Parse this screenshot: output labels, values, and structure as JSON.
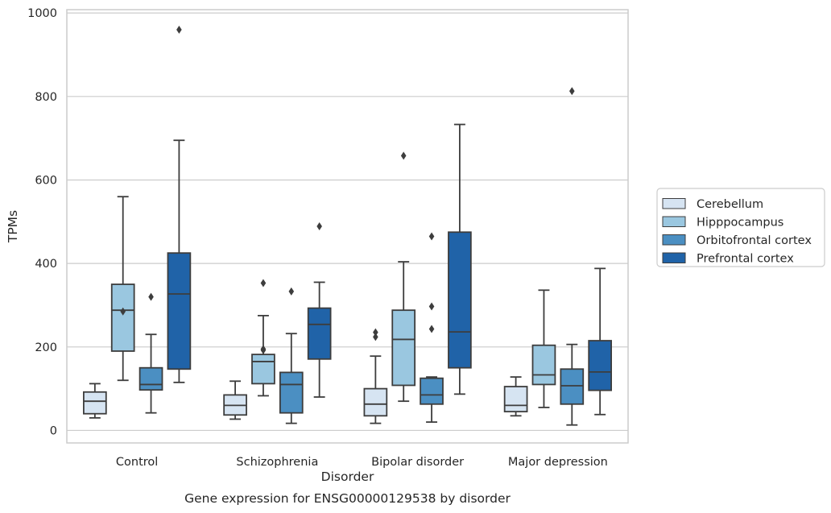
{
  "chart_data": {
    "type": "boxplot",
    "title": "Gene expression for ENSG00000129538 by disorder",
    "xlabel": "Disorder",
    "ylabel": "TPMs",
    "ylim": [
      -30,
      1008
    ],
    "yticks": [
      0,
      200,
      400,
      600,
      800,
      1000
    ],
    "grid": true,
    "legend_position": "right",
    "categories": [
      "Control",
      "Schizophrenia",
      "Bipolar disorder",
      "Major depression"
    ],
    "series": [
      {
        "name": "Cerebellum",
        "color": "#d6e4f2",
        "boxes": [
          {
            "whislo": 30,
            "q1": 40,
            "med": 70,
            "q3": 92,
            "whishi": 112,
            "fliers": []
          },
          {
            "whislo": 27,
            "q1": 37,
            "med": 60,
            "q3": 85,
            "whishi": 118,
            "fliers": []
          },
          {
            "whislo": 17,
            "q1": 35,
            "med": 63,
            "q3": 100,
            "whishi": 178,
            "fliers": [
              224,
              235
            ]
          },
          {
            "whislo": 35,
            "q1": 45,
            "med": 60,
            "q3": 105,
            "whishi": 128,
            "fliers": []
          }
        ]
      },
      {
        "name": "Hipppocampus",
        "color": "#9ac7e0",
        "boxes": [
          {
            "whislo": 120,
            "q1": 190,
            "med": 288,
            "q3": 350,
            "whishi": 560,
            "fliers": [
              285
            ]
          },
          {
            "whislo": 83,
            "q1": 112,
            "med": 165,
            "q3": 182,
            "whishi": 275,
            "fliers": [
              192,
              195,
              353
            ]
          },
          {
            "whislo": 70,
            "q1": 108,
            "med": 218,
            "q3": 288,
            "whishi": 404,
            "fliers": [
              658
            ]
          },
          {
            "whislo": 55,
            "q1": 110,
            "med": 133,
            "q3": 204,
            "whishi": 336,
            "fliers": []
          }
        ]
      },
      {
        "name": "Orbitofrontal cortex",
        "color": "#4b8fc2",
        "boxes": [
          {
            "whislo": 42,
            "q1": 97,
            "med": 110,
            "q3": 150,
            "whishi": 230,
            "fliers": [
              320
            ]
          },
          {
            "whislo": 17,
            "q1": 42,
            "med": 110,
            "q3": 139,
            "whishi": 232,
            "fliers": [
              333
            ]
          },
          {
            "whislo": 20,
            "q1": 63,
            "med": 85,
            "q3": 125,
            "whishi": 128,
            "fliers": [
              243,
              297,
              465
            ]
          },
          {
            "whislo": 13,
            "q1": 63,
            "med": 107,
            "q3": 147,
            "whishi": 206,
            "fliers": [
              813
            ]
          }
        ]
      },
      {
        "name": "Prefrontal cortex",
        "color": "#2063a8",
        "boxes": [
          {
            "whislo": 115,
            "q1": 147,
            "med": 327,
            "q3": 425,
            "whishi": 695,
            "fliers": [
              960
            ]
          },
          {
            "whislo": 80,
            "q1": 171,
            "med": 254,
            "q3": 293,
            "whishi": 355,
            "fliers": [
              489
            ]
          },
          {
            "whislo": 87,
            "q1": 150,
            "med": 236,
            "q3": 475,
            "whishi": 733,
            "fliers": []
          },
          {
            "whislo": 38,
            "q1": 96,
            "med": 140,
            "q3": 215,
            "whishi": 388,
            "fliers": []
          }
        ]
      }
    ]
  }
}
